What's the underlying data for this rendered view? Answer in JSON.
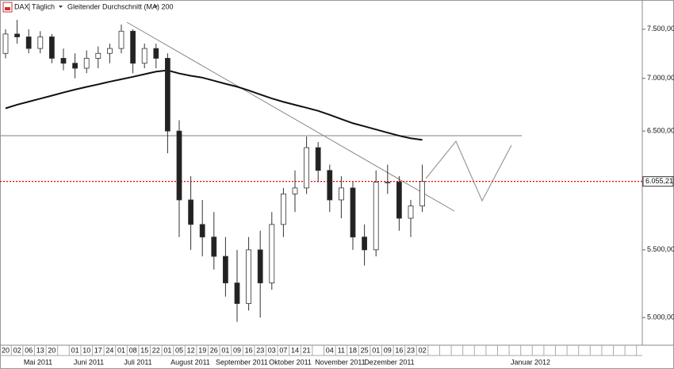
{
  "header": {
    "symbol": "DAX",
    "interval": "Täglich"
  },
  "chart_data": {
    "type": "candlestick",
    "log_scale": true,
    "ylim": [
      4810,
      7815
    ],
    "yticks": [
      {
        "value": 5000,
        "label": "5.000,00"
      },
      {
        "value": 5500,
        "label": "5.500,00"
      },
      {
        "value": 6500,
        "label": "6.500,00"
      },
      {
        "value": 7000,
        "label": "7.000,00"
      },
      {
        "value": 7500,
        "label": "7.500,00"
      }
    ],
    "categories": [
      "20",
      "02",
      "06",
      "13",
      "20",
      null,
      "01",
      "10",
      "17",
      "24",
      "01",
      "08",
      "15",
      "22",
      "01",
      "05",
      "12",
      "19",
      "26",
      "01",
      "09",
      "16",
      "23",
      "03",
      "07",
      "14",
      "21",
      null,
      "04",
      "11",
      "18",
      "25",
      "01",
      "09",
      "16",
      "23",
      "02"
    ],
    "month_labels": [
      "Mai 2011",
      "Juni 2011",
      "Juli 2011",
      "August 2011",
      "September 2011",
      "Oktober 2011",
      "November 2011",
      "Dezember 2011",
      "Januar 2012"
    ],
    "open": [
      7250,
      7450,
      7420,
      7300,
      7420,
      7200,
      7150,
      7100,
      7200,
      7250,
      7300,
      7480,
      7150,
      7300,
      7200,
      6500,
      5900,
      5700,
      5600,
      5450,
      5250,
      5100,
      5500,
      5250,
      5700,
      5950,
      6000,
      6350,
      6150,
      5900,
      6000,
      5600,
      5500,
      6050,
      6050,
      5750,
      5850
    ],
    "high": [
      7500,
      7600,
      7500,
      7480,
      7450,
      7300,
      7250,
      7280,
      7320,
      7350,
      7550,
      7500,
      7350,
      7350,
      7250,
      6600,
      6100,
      5900,
      5800,
      5600,
      5500,
      5600,
      5650,
      5800,
      6000,
      6150,
      6450,
      6400,
      6200,
      6100,
      6050,
      5700,
      6150,
      6200,
      6100,
      5900,
      6200
    ],
    "low": [
      7200,
      7350,
      7250,
      7250,
      7150,
      7080,
      7000,
      7050,
      7100,
      7150,
      7250,
      7050,
      7100,
      7100,
      6300,
      5600,
      5500,
      5450,
      5350,
      5150,
      4970,
      5050,
      5000,
      5200,
      5600,
      5800,
      5950,
      6050,
      5800,
      5750,
      5500,
      5380,
      5450,
      5950,
      5650,
      5600,
      5800
    ],
    "close": [
      7450,
      7420,
      7300,
      7420,
      7200,
      7150,
      7100,
      7200,
      7250,
      7300,
      7480,
      7150,
      7300,
      7200,
      6500,
      5900,
      5700,
      5600,
      5450,
      5250,
      5100,
      5500,
      5250,
      5700,
      5950,
      6000,
      6350,
      6150,
      5900,
      6000,
      5600,
      5500,
      6050,
      6050,
      5750,
      5850,
      6055.21
    ],
    "up_color": "#ffffff",
    "down_color": "#222222",
    "series": [
      {
        "name": "Gleitender Durchschnitt (MA) 200",
        "color": "#111111",
        "values": [
          6711,
          6745,
          6774,
          6803,
          6832,
          6862,
          6890,
          6916,
          6941,
          6967,
          6991,
          7015,
          7041,
          7066,
          7079,
          7048,
          7025,
          7007,
          6977,
          6946,
          6918,
          6882,
          6843,
          6805,
          6772,
          6744,
          6716,
          6687,
          6650,
          6610,
          6572,
          6543,
          6514,
          6485,
          6457,
          6434,
          6420
        ]
      }
    ],
    "last_price": {
      "value": 6055.21,
      "label": "6.055,21"
    }
  }
}
